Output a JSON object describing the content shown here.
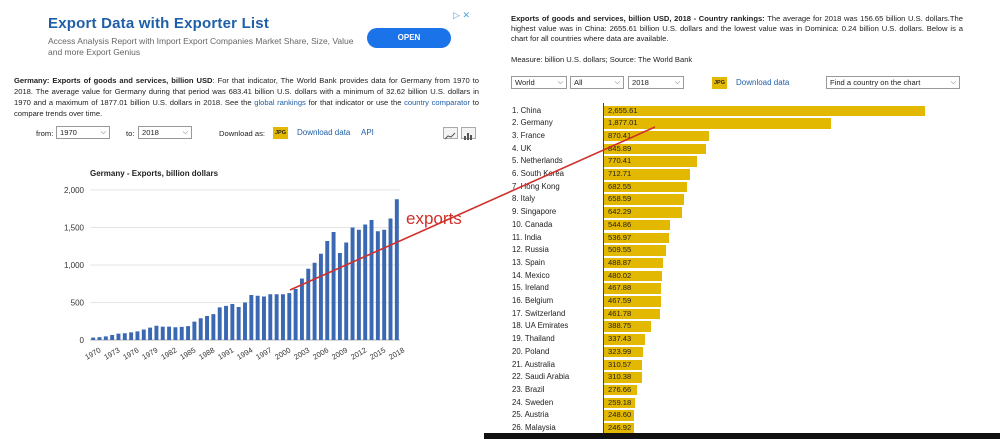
{
  "ad": {
    "title": "Export Data with Exporter List",
    "body": "Access Analysis Report with Import Export Companies Market Share, Size, Value and more Export Genius",
    "button": "OPEN",
    "marks": "▷ ✕"
  },
  "left": {
    "desc_lead": "Germany: Exports of goods and services, billion USD",
    "desc_text": ": For that indicator, The World Bank provides data for Germany from 1970 to 2018. The average value for Germany during that period was 683.41 billion U.S. dollars with a minimum of 32.62 billion U.S. dollars in 1970 and a maximum of 1877.01 billion U.S. dollars in 2018. See the ",
    "desc_link1": "global rankings",
    "desc_mid": " for that indicator or use the ",
    "desc_link2": "country comparator",
    "desc_end": " to compare trends over time.",
    "from_label": "from:",
    "from_value": "1970",
    "to_label": "to:",
    "to_value": "2018",
    "download_as": "Download as:",
    "jpg": "JPG",
    "download_data": "Download data",
    "api": "API"
  },
  "right": {
    "head_lead": "Exports of goods and services, billion USD, 2018 - Country rankings:",
    "head_text": " The average for 2018 was 156.65 billion U.S. dollars.The highest value was in China: 2655.61 billion U.S. dollars and the lowest value was in Dominica: 0.24 billion U.S. dollars. Below is a chart for all countries where data are available.",
    "measure": "Measure: billion U.S. dollars; Source: The World Bank",
    "sel_region": "World",
    "sel_group": "All",
    "sel_year": "2018",
    "jpg": "JPG",
    "download_data": "Download data",
    "find": "Find a country on the chart"
  },
  "annotation": {
    "label": "exports",
    "color": "#d0302a"
  },
  "chart_data": [
    {
      "type": "bar",
      "title": "Germany - Exports, billion dollars",
      "color": "#3b68b3",
      "x": [
        1970,
        1971,
        1972,
        1973,
        1974,
        1975,
        1976,
        1977,
        1978,
        1979,
        1980,
        1981,
        1982,
        1983,
        1984,
        1985,
        1986,
        1987,
        1988,
        1989,
        1990,
        1991,
        1992,
        1993,
        1994,
        1995,
        1996,
        1997,
        1998,
        1999,
        2000,
        2001,
        2002,
        2003,
        2004,
        2005,
        2006,
        2007,
        2008,
        2009,
        2010,
        2011,
        2012,
        2013,
        2014,
        2015,
        2016,
        2017,
        2018
      ],
      "values": [
        32.62,
        38,
        48,
        67,
        85,
        90,
        102,
        115,
        140,
        165,
        190,
        178,
        178,
        170,
        175,
        185,
        245,
        290,
        320,
        345,
        435,
        455,
        480,
        440,
        500,
        600,
        590,
        580,
        610,
        610,
        610,
        625,
        680,
        820,
        950,
        1030,
        1150,
        1320,
        1440,
        1160,
        1300,
        1500,
        1470,
        1540,
        1600,
        1450,
        1470,
        1620,
        1877.01
      ],
      "x_tick_labels": [
        "1970",
        "1973",
        "1976",
        "1979",
        "1982",
        "1985",
        "1988",
        "1991",
        "1994",
        "1997",
        "2000",
        "2003",
        "2006",
        "2009",
        "2012",
        "2015",
        "2018"
      ],
      "y_ticks": [
        "0",
        "500",
        "1,000",
        "1,500",
        "2,000"
      ],
      "ylim": [
        0,
        2000
      ]
    },
    {
      "type": "bar",
      "orientation": "horizontal",
      "color": "#e3b800",
      "categories": [
        "1. China",
        "2. Germany",
        "3. France",
        "4. UK",
        "5. Netherlands",
        "6. South Korea",
        "7. Hong Kong",
        "8. Italy",
        "9. Singapore",
        "10. Canada",
        "11. India",
        "12. Russia",
        "13. Spain",
        "14. Mexico",
        "15. Ireland",
        "16. Belgium",
        "17. Switzerland",
        "18. UA Emirates",
        "19. Thailand",
        "20. Poland",
        "21. Australia",
        "22. Saudi Arabia",
        "23. Brazil",
        "24. Sweden",
        "25. Austria",
        "26. Malaysia"
      ],
      "values": [
        2655.61,
        1877.01,
        870.41,
        845.89,
        770.41,
        712.71,
        682.55,
        658.59,
        642.29,
        544.86,
        536.97,
        509.55,
        488.87,
        480.02,
        467.88,
        467.59,
        461.78,
        388.75,
        337.43,
        323.99,
        310.57,
        310.38,
        276.66,
        259.18,
        248.6,
        246.92
      ],
      "value_labels": [
        "2,655.61",
        "1,877.01",
        "870.41",
        "845.89",
        "770.41",
        "712.71",
        "682.55",
        "658.59",
        "642.29",
        "544.86",
        "536.97",
        "509.55",
        "488.87",
        "480.02",
        "467.88",
        "467.59",
        "461.78",
        "388.75",
        "337.43",
        "323.99",
        "310.57",
        "310.38",
        "276.66",
        "259.18",
        "248.60",
        "246.92"
      ]
    }
  ]
}
